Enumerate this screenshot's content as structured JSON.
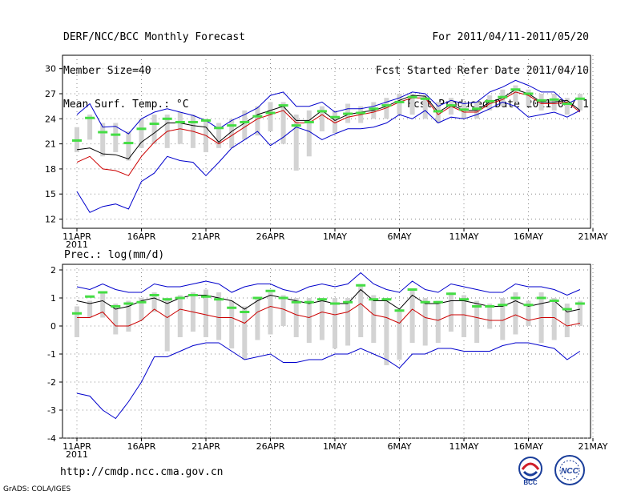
{
  "header": {
    "left": [
      "DERF/NCC/BCC Monthly Forecast",
      "Member Size=40",
      "Mean Surf. Temp.: °C"
    ],
    "right": [
      "For 2011/04/11-2011/05/20",
      "Fcst Started Refer Date 2011/04/10",
      "Fcst Produced Date 2011/04/11"
    ]
  },
  "footer": {
    "url": "http://cmdp.ncc.cma.gov.cn",
    "credit": "GrADS: COLA/IGES",
    "logo_left": "BCC",
    "logo_right": "NCC"
  },
  "colors": {
    "upper": "#0000cc",
    "lower": "#cc0000",
    "mean": "#000000",
    "obs": "#44dd44",
    "box": "#d3d3d3"
  },
  "chart_data": [
    {
      "type": "line",
      "title": "Mean Surf. Temp.: °C",
      "x_ticks": [
        "11APR",
        "16APR",
        "21APR",
        "26APR",
        "1MAY",
        "6MAY",
        "11MAY",
        "16MAY",
        "21MAY"
      ],
      "x_year": "2011",
      "y_ticks": [
        12,
        15,
        18,
        21,
        24,
        27,
        30
      ],
      "ylim": [
        10.9,
        31.6
      ],
      "days": 40,
      "series": [
        {
          "name": "upper",
          "values": [
            24.5,
            25.8,
            23.0,
            23.1,
            22.2,
            24.0,
            24.8,
            25.2,
            24.8,
            24.4,
            23.8,
            22.8,
            23.8,
            24.5,
            25.3,
            26.8,
            27.2,
            25.5,
            25.5,
            26.0,
            24.8,
            25.2,
            25.2,
            25.5,
            26.0,
            26.5,
            27.2,
            27.0,
            25.5,
            26.2,
            25.8,
            26.0,
            27.2,
            27.8,
            28.6,
            28.0,
            27.2,
            27.2,
            25.8,
            26.5
          ]
        },
        {
          "name": "mean",
          "values": [
            20.3,
            20.5,
            19.8,
            19.7,
            19.2,
            21.2,
            22.3,
            23.5,
            23.5,
            23.2,
            23.0,
            21.2,
            22.5,
            23.5,
            24.5,
            25.0,
            25.5,
            23.8,
            23.8,
            25.0,
            23.8,
            24.5,
            24.8,
            25.0,
            25.5,
            26.2,
            26.8,
            26.7,
            24.8,
            25.7,
            25.0,
            25.0,
            26.0,
            26.5,
            27.5,
            27.0,
            26.0,
            26.0,
            26.2,
            25.0
          ]
        },
        {
          "name": "lower",
          "values": [
            18.8,
            19.5,
            18.0,
            17.8,
            17.2,
            19.5,
            21.2,
            22.5,
            22.8,
            22.5,
            22.0,
            21.0,
            22.0,
            23.0,
            24.0,
            24.5,
            25.0,
            23.5,
            23.5,
            24.5,
            23.5,
            24.2,
            24.5,
            24.8,
            25.3,
            26.0,
            26.5,
            26.5,
            24.5,
            25.5,
            24.8,
            24.8,
            25.8,
            26.3,
            27.2,
            26.8,
            25.8,
            25.8,
            26.0,
            24.8
          ]
        },
        {
          "name": "lowest",
          "values": [
            15.3,
            12.8,
            13.5,
            13.8,
            13.2,
            16.5,
            17.5,
            19.5,
            19.0,
            18.8,
            17.2,
            18.8,
            20.5,
            21.5,
            22.5,
            20.8,
            21.8,
            23.0,
            22.5,
            21.5,
            22.2,
            22.8,
            22.8,
            23.0,
            23.5,
            24.5,
            24.0,
            25.0,
            23.5,
            24.2,
            24.0,
            24.5,
            25.2,
            26.0,
            25.5,
            24.2,
            24.5,
            24.8,
            24.2,
            25.0
          ]
        }
      ],
      "obs": [
        21.4,
        24.1,
        22.4,
        22.1,
        21.1,
        22.8,
        23.4,
        24.0,
        23.6,
        23.6,
        23.8,
        22.9,
        23.2,
        23.6,
        24.3,
        24.7,
        25.6,
        23.2,
        23.6,
        24.9,
        24.2,
        24.6,
        24.7,
        25.2,
        25.6,
        26.0,
        26.6,
        26.4,
        24.9,
        25.6,
        25.1,
        25.2,
        26.1,
        26.6,
        27.5,
        27.0,
        26.2,
        26.3,
        25.8,
        26.4
      ],
      "box_range": [
        [
          20.0,
          23.0
        ],
        [
          21.5,
          24.5
        ],
        [
          19.5,
          23.5
        ],
        [
          20.0,
          23.5
        ],
        [
          19.0,
          22.5
        ],
        [
          20.5,
          24.0
        ],
        [
          21.0,
          24.5
        ],
        [
          20.5,
          24.5
        ],
        [
          21.0,
          24.8
        ],
        [
          20.5,
          24.5
        ],
        [
          20.0,
          24.0
        ],
        [
          20.5,
          23.5
        ],
        [
          20.5,
          24.0
        ],
        [
          21.5,
          25.0
        ],
        [
          22.0,
          25.5
        ],
        [
          22.5,
          26.0
        ],
        [
          21.0,
          26.0
        ],
        [
          17.8,
          24.5
        ],
        [
          19.5,
          25.0
        ],
        [
          22.5,
          25.5
        ],
        [
          22.3,
          25.0
        ],
        [
          23.5,
          25.8
        ],
        [
          23.5,
          25.5
        ],
        [
          24.0,
          26.0
        ],
        [
          24.0,
          26.5
        ],
        [
          24.5,
          27.0
        ],
        [
          24.5,
          27.0
        ],
        [
          24.0,
          26.8
        ],
        [
          23.5,
          26.0
        ],
        [
          24.5,
          26.5
        ],
        [
          24.0,
          26.0
        ],
        [
          24.0,
          26.0
        ],
        [
          25.0,
          26.8
        ],
        [
          25.5,
          27.5
        ],
        [
          26.0,
          28.0
        ],
        [
          25.5,
          27.5
        ],
        [
          25.0,
          27.0
        ],
        [
          25.0,
          27.0
        ],
        [
          24.5,
          26.5
        ],
        [
          25.0,
          27.0
        ]
      ]
    },
    {
      "type": "line",
      "title": "Prec.: log(mm/d)",
      "x_ticks": [
        "11APR",
        "16APR",
        "21APR",
        "26APR",
        "1MAY",
        "6MAY",
        "11MAY",
        "16MAY",
        "21MAY"
      ],
      "x_year": "2011",
      "y_ticks": [
        -4,
        -3,
        -2,
        -1,
        0,
        1,
        2
      ],
      "ylim": [
        -4,
        2.2
      ],
      "days": 40,
      "series": [
        {
          "name": "upper",
          "values": [
            1.4,
            1.3,
            1.5,
            1.3,
            1.2,
            1.2,
            1.5,
            1.4,
            1.4,
            1.5,
            1.6,
            1.5,
            1.2,
            1.4,
            1.5,
            1.5,
            1.3,
            1.2,
            1.4,
            1.5,
            1.4,
            1.5,
            1.9,
            1.5,
            1.3,
            1.2,
            1.6,
            1.3,
            1.2,
            1.5,
            1.4,
            1.3,
            1.2,
            1.2,
            1.5,
            1.4,
            1.4,
            1.3,
            1.1,
            1.3
          ]
        },
        {
          "name": "mean",
          "values": [
            0.9,
            0.8,
            0.9,
            0.6,
            0.7,
            0.9,
            1.0,
            0.8,
            1.0,
            1.1,
            1.1,
            1.0,
            0.9,
            0.6,
            0.9,
            1.1,
            1.0,
            0.9,
            0.8,
            0.9,
            0.8,
            0.8,
            1.3,
            0.9,
            0.9,
            0.6,
            1.1,
            0.8,
            0.8,
            0.9,
            0.9,
            0.8,
            0.7,
            0.7,
            0.9,
            0.7,
            0.8,
            0.9,
            0.5,
            0.6
          ]
        },
        {
          "name": "lower",
          "values": [
            0.3,
            0.3,
            0.5,
            0.0,
            0.0,
            0.2,
            0.6,
            0.3,
            0.6,
            0.5,
            0.4,
            0.3,
            0.3,
            0.1,
            0.5,
            0.7,
            0.6,
            0.4,
            0.3,
            0.5,
            0.4,
            0.5,
            0.8,
            0.4,
            0.3,
            0.1,
            0.6,
            0.3,
            0.2,
            0.4,
            0.4,
            0.3,
            0.2,
            0.2,
            0.4,
            0.2,
            0.3,
            0.3,
            0.0,
            0.1
          ]
        },
        {
          "name": "lowest",
          "values": [
            -2.4,
            -2.5,
            -3.0,
            -3.3,
            -2.7,
            -2.0,
            -1.1,
            -1.1,
            -0.9,
            -0.7,
            -0.6,
            -0.6,
            -0.9,
            -1.2,
            -1.1,
            -1.0,
            -1.3,
            -1.3,
            -1.2,
            -1.2,
            -1.0,
            -1.0,
            -0.8,
            -1.0,
            -1.2,
            -1.5,
            -1.0,
            -1.0,
            -0.8,
            -0.8,
            -0.9,
            -0.9,
            -0.9,
            -0.7,
            -0.6,
            -0.6,
            -0.7,
            -0.8,
            -1.2,
            -0.9
          ]
        },
        {
          "name": "obs",
          "values": [
            0.45,
            1.05,
            1.2,
            0.7,
            0.8,
            0.85,
            1.1,
            0.95,
            1.0,
            1.1,
            1.05,
            0.95,
            0.65,
            0.5,
            1.0,
            1.25,
            1.0,
            0.85,
            0.85,
            0.95,
            0.8,
            0.85,
            1.45,
            0.95,
            0.95,
            0.55,
            1.3,
            0.85,
            0.85,
            1.15,
            0.95,
            0.7,
            0.7,
            0.75,
            1.0,
            0.75,
            1.0,
            0.9,
            0.6,
            0.8
          ]
        }
      ],
      "box_range": [
        [
          -0.4,
          0.7
        ],
        [
          0.3,
          0.9
        ],
        [
          0.3,
          1.2
        ],
        [
          -0.3,
          0.8
        ],
        [
          -0.2,
          0.9
        ],
        [
          0.2,
          1.0
        ],
        [
          0.5,
          1.2
        ],
        [
          -0.9,
          1.0
        ],
        [
          -0.4,
          1.1
        ],
        [
          -0.2,
          1.2
        ],
        [
          -0.4,
          1.3
        ],
        [
          -0.5,
          1.2
        ],
        [
          -0.8,
          0.9
        ],
        [
          -1.2,
          0.7
        ],
        [
          -0.5,
          1.0
        ],
        [
          -0.3,
          1.2
        ],
        [
          0.0,
          1.1
        ],
        [
          -0.4,
          1.0
        ],
        [
          -0.6,
          1.0
        ],
        [
          -0.5,
          1.0
        ],
        [
          -0.8,
          1.0
        ],
        [
          -0.7,
          1.0
        ],
        [
          -0.4,
          1.5
        ],
        [
          -0.6,
          1.1
        ],
        [
          -1.4,
          1.0
        ],
        [
          -1.2,
          0.6
        ],
        [
          -0.6,
          1.3
        ],
        [
          -0.7,
          1.0
        ],
        [
          -0.6,
          0.9
        ],
        [
          -0.2,
          1.2
        ],
        [
          -0.4,
          1.1
        ],
        [
          -0.6,
          0.9
        ],
        [
          -0.1,
          0.8
        ],
        [
          -0.5,
          1.0
        ],
        [
          -0.3,
          1.2
        ],
        [
          0.0,
          0.9
        ],
        [
          -0.6,
          1.2
        ],
        [
          -0.5,
          1.0
        ],
        [
          -0.4,
          0.8
        ],
        [
          0.0,
          0.9
        ]
      ]
    }
  ]
}
